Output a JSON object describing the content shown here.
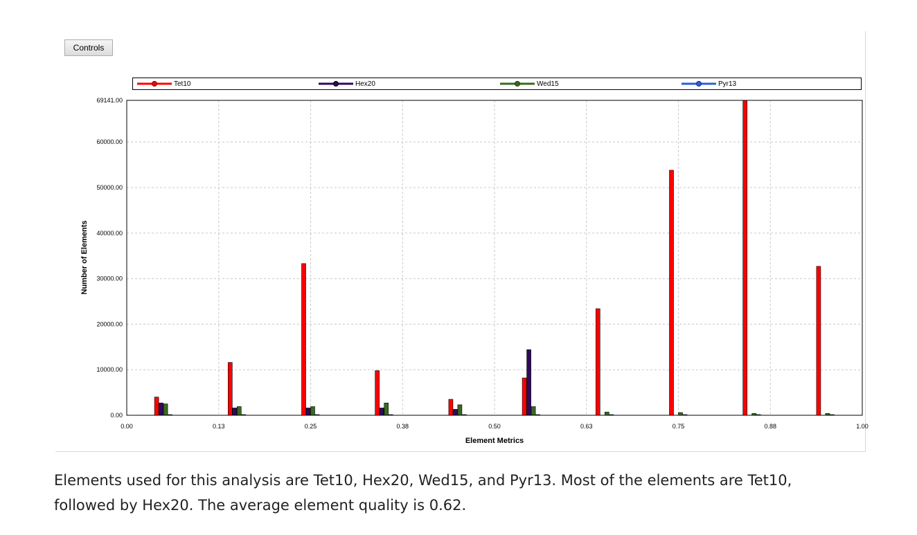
{
  "controls_label": "Controls",
  "chart_data": {
    "type": "bar",
    "xlabel": "Element Metrics",
    "ylabel": "Number of Elements",
    "ylim": [
      0,
      69141
    ],
    "xlim": [
      0,
      1
    ],
    "x_tick_labels": [
      "0.00",
      "0.13",
      "0.25",
      "0.38",
      "0.50",
      "0.63",
      "0.75",
      "0.88",
      "1.00"
    ],
    "y_tick_values": [
      0,
      10000,
      20000,
      30000,
      40000,
      50000,
      60000,
      69141
    ],
    "y_tick_labels": [
      "0.00",
      "10000.00",
      "20000.00",
      "30000.00",
      "40000.00",
      "50000.00",
      "60000.00",
      "69141.00"
    ],
    "bin_centers": [
      0.05,
      0.15,
      0.25,
      0.35,
      0.45,
      0.55,
      0.65,
      0.75,
      0.85,
      0.95
    ],
    "grid": true,
    "legend_position": "top",
    "series": [
      {
        "name": "Tet10",
        "color": "#ff0000",
        "values": [
          4000,
          11600,
          33300,
          9800,
          3500,
          8200,
          23400,
          53800,
          69141,
          32700
        ]
      },
      {
        "name": "Hex20",
        "color": "#2e0a5e",
        "values": [
          2700,
          1600,
          1600,
          1600,
          1300,
          14400,
          0,
          0,
          0,
          0
        ]
      },
      {
        "name": "Wed15",
        "color": "#3a6a1e",
        "values": [
          2500,
          1900,
          1900,
          2700,
          2300,
          1900,
          700,
          600,
          400,
          400
        ]
      },
      {
        "name": "Pyr13",
        "color": "#2a5fd8",
        "values": [
          150,
          150,
          150,
          150,
          150,
          150,
          150,
          150,
          150,
          150
        ]
      }
    ]
  },
  "caption": {
    "line1": "Elements used for this analysis are Tet10, Hex20, Wed15, and Pyr13. Most of the elements are Tet10,",
    "line2": "followed by Hex20. The average element quality is 0.62."
  }
}
